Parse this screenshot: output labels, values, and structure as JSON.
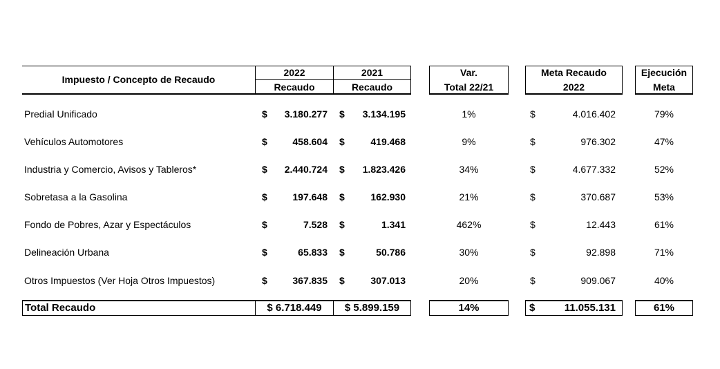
{
  "header": {
    "concept": "Impuesto / Concepto de Recaudo",
    "col2022_year": "2022",
    "col2022_sub": "Recaudo",
    "col2021_year": "2021",
    "col2021_sub": "Recaudo",
    "var_line1": "Var.",
    "var_line2": "Total 22/21",
    "meta_line1": "Meta Recaudo",
    "meta_line2": "2022",
    "ejec_line1": "Ejecución",
    "ejec_line2": "Meta"
  },
  "currency": "$",
  "rows": [
    {
      "concept": "Predial Unificado",
      "r2022": "3.180.277",
      "r2021": "3.134.195",
      "var": "1%",
      "meta": "4.016.402",
      "ejec": "79%"
    },
    {
      "concept": "Vehículos Automotores",
      "r2022": "458.604",
      "r2021": "419.468",
      "var": "9%",
      "meta": "976.302",
      "ejec": "47%"
    },
    {
      "concept": "Industria y Comercio, Avisos y Tableros*",
      "r2022": "2.440.724",
      "r2021": "1.823.426",
      "var": "34%",
      "meta": "4.677.332",
      "ejec": "52%"
    },
    {
      "concept": "Sobretasa a la Gasolina",
      "r2022": "197.648",
      "r2021": "162.930",
      "var": "21%",
      "meta": "370.687",
      "ejec": "53%"
    },
    {
      "concept": "Fondo de Pobres, Azar y Espectáculos",
      "r2022": "7.528",
      "r2021": "1.341",
      "var": "462%",
      "meta": "12.443",
      "ejec": "61%"
    },
    {
      "concept": "Delineación Urbana",
      "r2022": "65.833",
      "r2021": "50.786",
      "var": "30%",
      "meta": "92.898",
      "ejec": "71%"
    },
    {
      "concept": "Otros Impuestos (Ver Hoja Otros Impuestos)",
      "r2022": "367.835",
      "r2021": "307.013",
      "var": "20%",
      "meta": "909.067",
      "ejec": "40%"
    }
  ],
  "total": {
    "label": "Total Recaudo",
    "r2022": "$ 6.718.449",
    "r2021": "$ 5.899.159",
    "var": "14%",
    "meta": "11.055.131",
    "ejec": "61%"
  }
}
